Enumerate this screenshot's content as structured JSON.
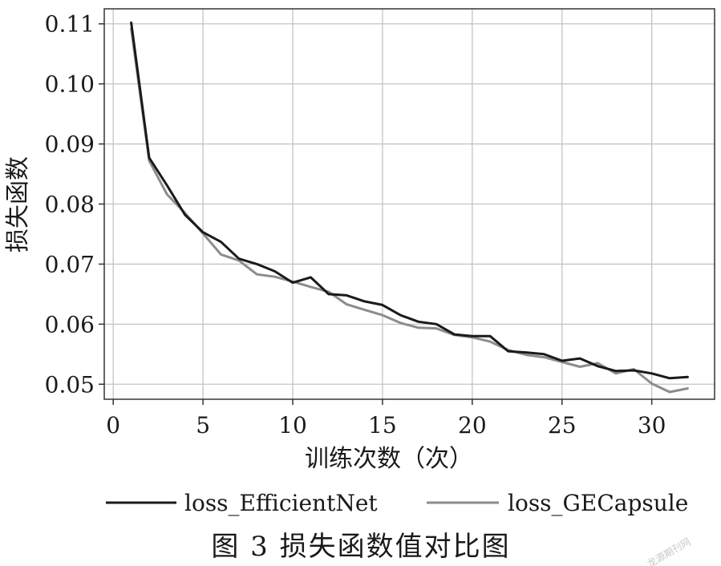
{
  "chart_data": {
    "type": "line",
    "xlabel": "训练次数（次）",
    "ylabel": "损失函数",
    "xlim": [
      -0.5,
      33.5
    ],
    "ylim": [
      0.0475,
      0.1125
    ],
    "xticks": [
      0,
      5,
      10,
      15,
      20,
      25,
      30
    ],
    "yticks": [
      0.05,
      0.06,
      0.07,
      0.08,
      0.09,
      0.1,
      0.11
    ],
    "ytick_labels": [
      "0.05",
      "0.06",
      "0.07",
      "0.08",
      "0.09",
      "0.10",
      "0.11"
    ],
    "grid": true,
    "legend_position": "bottom",
    "x": [
      1,
      2,
      3,
      4,
      5,
      6,
      7,
      8,
      9,
      10,
      11,
      12,
      13,
      14,
      15,
      16,
      17,
      18,
      19,
      20,
      21,
      22,
      23,
      24,
      25,
      26,
      27,
      28,
      29,
      30,
      31,
      32
    ],
    "series": [
      {
        "name": "loss_EfficientNet",
        "color": "#1a1a1a",
        "values": [
          0.1102,
          0.0877,
          0.0831,
          0.0782,
          0.0753,
          0.0737,
          0.0709,
          0.07,
          0.0688,
          0.0669,
          0.0678,
          0.065,
          0.0648,
          0.0638,
          0.0632,
          0.0615,
          0.0604,
          0.06,
          0.0583,
          0.058,
          0.058,
          0.0555,
          0.0553,
          0.055,
          0.0539,
          0.0543,
          0.053,
          0.0522,
          0.0523,
          0.0518,
          0.051,
          0.0512
        ]
      },
      {
        "name": "loss_GECapsule",
        "color": "#8c8c8c",
        "values": [
          0.1092,
          0.0872,
          0.0816,
          0.0785,
          0.0751,
          0.0716,
          0.0706,
          0.0683,
          0.0679,
          0.0671,
          0.0662,
          0.0654,
          0.0633,
          0.0624,
          0.0615,
          0.0602,
          0.0594,
          0.0593,
          0.0582,
          0.0578,
          0.0571,
          0.0557,
          0.0549,
          0.0545,
          0.0537,
          0.0529,
          0.0535,
          0.0518,
          0.0525,
          0.0501,
          0.0487,
          0.0493
        ]
      }
    ]
  },
  "caption": "图 3   损失函数值对比图",
  "watermark": "龙源期刊网"
}
